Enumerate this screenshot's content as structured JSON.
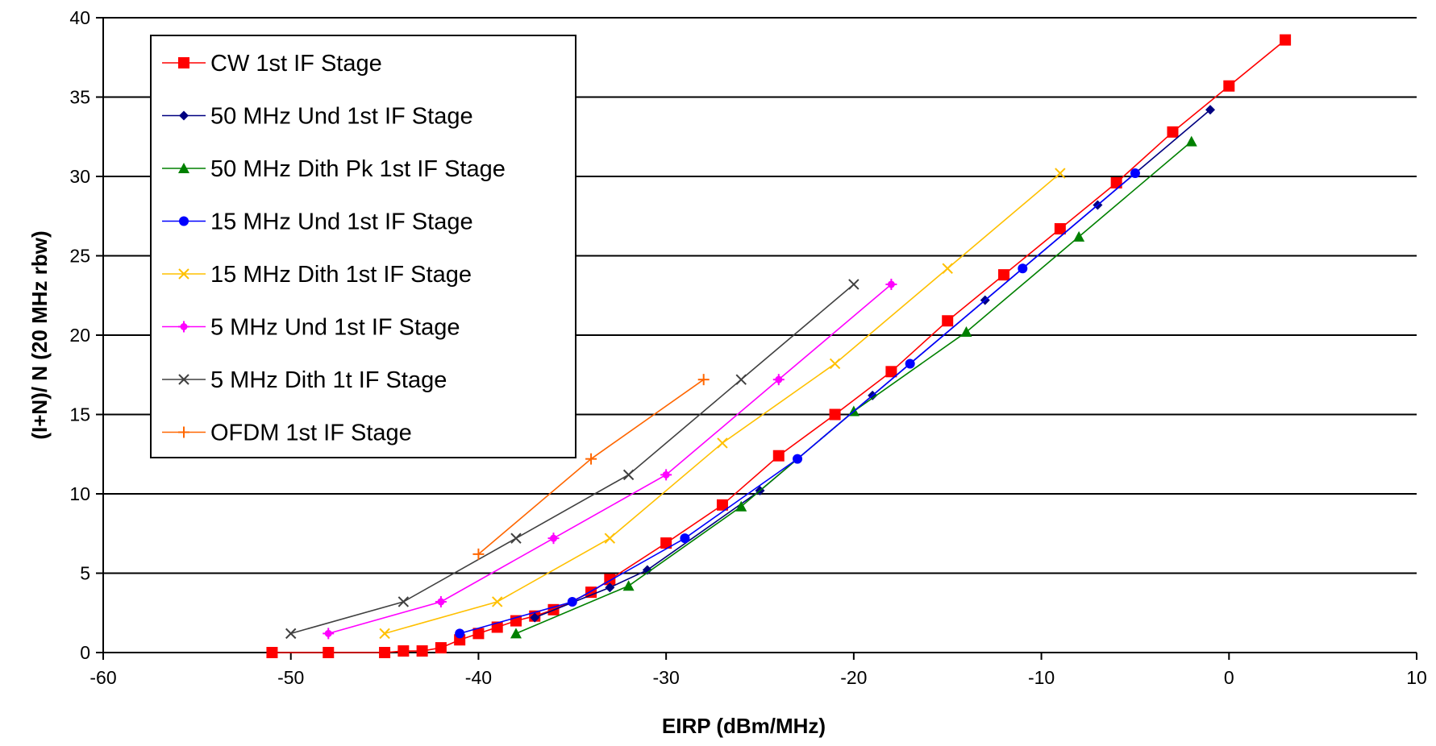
{
  "chart_data": {
    "type": "line",
    "title": "",
    "xlabel": "EIRP (dBm/MHz)",
    "ylabel": "(I+N)/ N (20 MHz rbw)",
    "xlim": [
      -60,
      10
    ],
    "ylim": [
      0,
      40
    ],
    "xticks": [
      -60,
      -50,
      -40,
      -30,
      -20,
      -10,
      0,
      10
    ],
    "yticks": [
      0,
      5,
      10,
      15,
      20,
      25,
      30,
      35,
      40
    ],
    "grid": "horizontal",
    "legend_position": "top-left",
    "series": [
      {
        "name": "CW 1st IF Stage",
        "color": "#ff0000",
        "marker": "square",
        "x": [
          -51,
          -48,
          -45,
          -44,
          -43,
          -42,
          -41,
          -40,
          -39,
          -38,
          -37,
          -36,
          -34,
          -33,
          -30,
          -27,
          -24,
          -21,
          -18,
          -15,
          -12,
          -9,
          -6,
          -3,
          0,
          3
        ],
        "y": [
          0.0,
          0.0,
          0.0,
          0.1,
          0.1,
          0.3,
          0.8,
          1.2,
          1.6,
          2.0,
          2.3,
          2.7,
          3.8,
          4.6,
          6.9,
          9.3,
          12.4,
          15.0,
          17.7,
          20.9,
          23.8,
          26.7,
          29.6,
          32.8,
          35.7,
          38.6
        ]
      },
      {
        "name": "50 MHz Und 1st IF Stage",
        "color": "#000080",
        "marker": "diamond",
        "x": [
          -37,
          -33,
          -31,
          -25,
          -19,
          -13,
          -7,
          -1
        ],
        "y": [
          2.2,
          4.1,
          5.2,
          10.2,
          16.2,
          22.2,
          28.2,
          34.2
        ]
      },
      {
        "name": "50 MHz Dith Pk 1st IF Stage",
        "color": "#008000",
        "marker": "triangle",
        "x": [
          -38,
          -32,
          -26,
          -20,
          -14,
          -8,
          -2
        ],
        "y": [
          1.2,
          4.2,
          9.2,
          15.2,
          20.2,
          26.2,
          32.2
        ]
      },
      {
        "name": "15 MHz Und 1st IF Stage",
        "color": "#0000ff",
        "marker": "circle",
        "x": [
          -41,
          -35,
          -29,
          -23,
          -17,
          -11,
          -5
        ],
        "y": [
          1.2,
          3.2,
          7.2,
          12.2,
          18.2,
          24.2,
          30.2
        ]
      },
      {
        "name": "15 MHz Dith 1st IF Stage",
        "color": "#ffc000",
        "marker": "x",
        "x": [
          -45,
          -39,
          -33,
          -27,
          -21,
          -15,
          -9
        ],
        "y": [
          1.2,
          3.2,
          7.2,
          13.2,
          18.2,
          24.2,
          30.2
        ]
      },
      {
        "name": "5 MHz Und 1st IF Stage",
        "color": "#ff00ff",
        "marker": "star",
        "x": [
          -48,
          -42,
          -36,
          -30,
          -24,
          -18
        ],
        "y": [
          1.2,
          3.2,
          7.2,
          11.2,
          17.2,
          23.2
        ]
      },
      {
        "name": "5 MHz Dith 1t IF Stage",
        "color": "#404040",
        "marker": "x",
        "x": [
          -50,
          -44,
          -38,
          -32,
          -26,
          -20
        ],
        "y": [
          1.2,
          3.2,
          7.2,
          11.2,
          17.2,
          23.2
        ]
      },
      {
        "name": "OFDM 1st IF Stage",
        "color": "#ff6600",
        "marker": "plus",
        "x": [
          -40,
          -34,
          -28
        ],
        "y": [
          6.2,
          12.2,
          17.2
        ]
      }
    ]
  }
}
